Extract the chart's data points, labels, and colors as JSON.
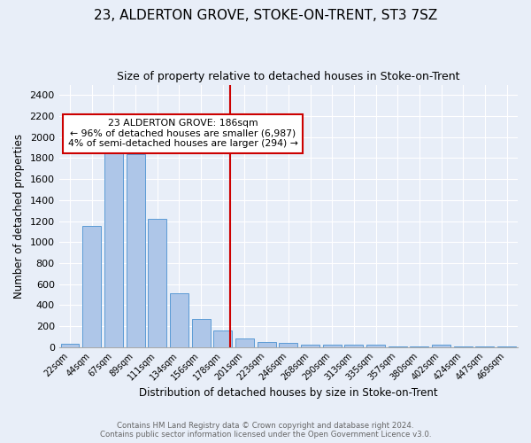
{
  "title": "23, ALDERTON GROVE, STOKE-ON-TRENT, ST3 7SZ",
  "subtitle": "Size of property relative to detached houses in Stoke-on-Trent",
  "xlabel": "Distribution of detached houses by size in Stoke-on-Trent",
  "ylabel": "Number of detached properties",
  "bar_labels": [
    "22sqm",
    "44sqm",
    "67sqm",
    "89sqm",
    "111sqm",
    "134sqm",
    "156sqm",
    "178sqm",
    "201sqm",
    "223sqm",
    "246sqm",
    "268sqm",
    "290sqm",
    "313sqm",
    "335sqm",
    "357sqm",
    "380sqm",
    "402sqm",
    "424sqm",
    "447sqm",
    "469sqm"
  ],
  "bar_values": [
    30,
    1150,
    1950,
    1840,
    1220,
    510,
    265,
    155,
    80,
    45,
    40,
    20,
    22,
    20,
    20,
    5,
    5,
    22,
    5,
    5,
    5
  ],
  "bar_color": "#aec6e8",
  "bar_edge_color": "#5b9bd5",
  "annotation_line1": "23 ALDERTON GROVE: 186sqm",
  "annotation_line2": "← 96% of detached houses are smaller (6,987)",
  "annotation_line3": "4% of semi-detached houses are larger (294) →",
  "annotation_box_color": "#ffffff",
  "annotation_box_edge": "#cc0000",
  "vline_color": "#cc0000",
  "footer1": "Contains HM Land Registry data © Crown copyright and database right 2024.",
  "footer2": "Contains public sector information licensed under the Open Government Licence v3.0.",
  "ylim": [
    0,
    2500
  ],
  "background_color": "#e8eef8",
  "grid_color": "#ffffff",
  "title_fontsize": 11,
  "subtitle_fontsize": 9,
  "axis_label_fontsize": 8.5
}
